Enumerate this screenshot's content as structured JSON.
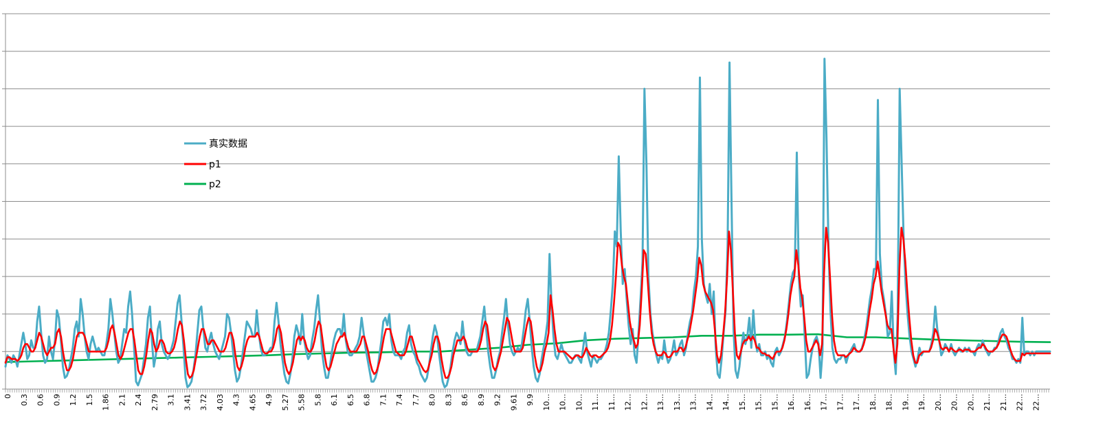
{
  "chart_data": {
    "type": "line",
    "title": "",
    "xlabel": "",
    "ylabel": "",
    "ylim": [
      0,
      10
    ],
    "grid": true,
    "legend_placement": "upper-left, inside plot",
    "x_tick_labels": [
      "0",
      "0.3",
      "0.6",
      "0.9",
      "1.2",
      "1.5",
      "1.86",
      "2.1",
      "2.4",
      "2.79",
      "3.1",
      "3.41",
      "3.72",
      "4.03",
      "4.3",
      "4.65",
      "4.9",
      "5.27",
      "5.58",
      "5.8",
      "6.1",
      "6.5",
      "6.8",
      "7.1",
      "7.4",
      "7.7",
      "8.0",
      "8.3",
      "8.6",
      "8.9",
      "9.2",
      "9.61",
      "9.9",
      "10...",
      "10...",
      "10...",
      "11...",
      "11...",
      "12...",
      "12...",
      "13...",
      "13...",
      "13...",
      "14...",
      "14...",
      "15...",
      "15...",
      "15...",
      "16...",
      "16...",
      "17...",
      "17...",
      "17...",
      "18...",
      "18...",
      "19...",
      "19...",
      "20...",
      "20...",
      "20...",
      "21...",
      "21...",
      "22...",
      "22..."
    ],
    "series": [
      {
        "name": "真实数据",
        "color": "#4BACC6",
        "values": [
          0.6,
          0.9,
          0.8,
          0.7,
          0.9,
          0.8,
          0.6,
          0.9,
          1.2,
          1.5,
          1.2,
          0.8,
          0.9,
          1.3,
          1.1,
          1.1,
          1.8,
          2.2,
          1.5,
          0.9,
          0.7,
          0.8,
          1.4,
          1.0,
          0.8,
          1.3,
          2.1,
          1.9,
          1.3,
          0.6,
          0.3,
          0.35,
          0.5,
          0.8,
          1.1,
          1.6,
          1.8,
          1.4,
          2.4,
          2.0,
          1.4,
          1.0,
          0.8,
          1.2,
          1.4,
          1.2,
          1.0,
          1.1,
          1.0,
          0.9,
          0.9,
          1.2,
          1.6,
          2.4,
          2.0,
          1.5,
          1.0,
          0.7,
          0.8,
          1.2,
          1.6,
          1.5,
          2.2,
          2.6,
          2.0,
          1.1,
          0.2,
          0.1,
          0.25,
          0.4,
          0.8,
          1.2,
          1.9,
          2.2,
          1.3,
          0.6,
          0.9,
          1.6,
          1.8,
          1.2,
          1.0,
          0.9,
          0.8,
          0.9,
          1.1,
          1.3,
          1.8,
          2.3,
          2.5,
          1.8,
          1.1,
          0.3,
          0.05,
          0.1,
          0.2,
          0.5,
          0.9,
          1.5,
          2.1,
          2.2,
          1.6,
          1.1,
          1.0,
          1.3,
          1.5,
          1.2,
          1.0,
          0.9,
          0.8,
          1.0,
          1.2,
          1.4,
          2.0,
          1.9,
          1.5,
          1.0,
          0.5,
          0.2,
          0.3,
          0.6,
          1.0,
          1.4,
          1.8,
          1.7,
          1.6,
          1.4,
          1.4,
          2.1,
          1.5,
          1.1,
          0.9,
          0.9,
          0.95,
          1.0,
          1.1,
          1.1,
          1.8,
          2.3,
          1.8,
          1.2,
          0.8,
          0.4,
          0.2,
          0.15,
          0.4,
          0.8,
          1.4,
          1.7,
          1.5,
          1.2,
          2.0,
          1.3,
          1.0,
          0.8,
          0.9,
          1.3,
          1.6,
          2.1,
          2.5,
          1.8,
          1.0,
          0.6,
          0.3,
          0.3,
          0.6,
          1.0,
          1.3,
          1.5,
          1.6,
          1.6,
          1.4,
          2.0,
          1.3,
          1.0,
          0.9,
          0.9,
          1.0,
          1.1,
          1.2,
          1.4,
          1.9,
          1.5,
          1.1,
          0.8,
          0.5,
          0.2,
          0.2,
          0.3,
          0.5,
          0.9,
          1.3,
          1.8,
          1.9,
          1.7,
          2.0,
          1.3,
          1.0,
          0.9,
          0.9,
          0.9,
          0.8,
          1.0,
          1.1,
          1.5,
          1.7,
          1.2,
          1.0,
          0.9,
          0.7,
          0.6,
          0.4,
          0.3,
          0.2,
          0.3,
          0.6,
          1.0,
          1.4,
          1.7,
          1.5,
          1.0,
          0.6,
          0.2,
          0.05,
          0.1,
          0.3,
          0.6,
          1.0,
          1.3,
          1.5,
          1.4,
          1.2,
          1.8,
          1.3,
          1.0,
          0.9,
          0.9,
          1.0,
          1.0,
          1.0,
          1.2,
          1.4,
          1.8,
          2.2,
          1.6,
          1.0,
          0.6,
          0.3,
          0.3,
          0.5,
          0.8,
          1.0,
          1.5,
          1.9,
          2.4,
          1.7,
          1.2,
          1.0,
          0.9,
          1.0,
          1.1,
          1.0,
          1.2,
          1.6,
          2.1,
          2.4,
          1.8,
          1.1,
          0.6,
          0.3,
          0.2,
          0.4,
          0.8,
          1.1,
          1.4,
          1.8,
          3.6,
          2.3,
          1.4,
          0.9,
          0.8,
          1.0,
          1.2,
          1.0,
          0.9,
          0.8,
          0.7,
          0.7,
          0.8,
          0.9,
          0.9,
          0.8,
          0.7,
          1.1,
          1.5,
          1.0,
          0.8,
          0.6,
          0.9,
          0.8,
          0.7,
          0.8,
          0.8,
          0.9,
          1.0,
          1.2,
          1.5,
          2.1,
          2.8,
          4.2,
          3.8,
          6.2,
          4.2,
          2.8,
          3.2,
          2.4,
          1.7,
          1.2,
          1.6,
          0.9,
          0.7,
          1.5,
          2.4,
          3.4,
          8.0,
          6.0,
          3.0,
          2.0,
          1.5,
          1.2,
          0.9,
          0.7,
          0.9,
          0.8,
          1.3,
          0.9,
          0.7,
          0.8,
          1.0,
          1.3,
          0.9,
          1.0,
          1.2,
          1.3,
          0.9,
          1.1,
          1.5,
          1.8,
          2.0,
          2.6,
          3.0,
          3.8,
          8.3,
          4.0,
          2.8,
          2.5,
          2.3,
          2.8,
          2.0,
          2.6,
          1.1,
          0.4,
          0.3,
          0.8,
          1.5,
          2.1,
          3.8,
          8.7,
          5.0,
          1.6,
          0.5,
          0.3,
          0.6,
          1.1,
          1.5,
          1.2,
          1.4,
          1.9,
          1.1,
          2.1,
          1.3,
          1.0,
          1.2,
          0.9,
          0.9,
          1.0,
          0.8,
          0.9,
          0.7,
          0.6,
          1.0,
          1.1,
          0.9,
          1.0,
          1.2,
          1.4,
          1.8,
          2.3,
          2.8,
          3.1,
          3.2,
          6.3,
          3.0,
          2.2,
          2.5,
          1.4,
          0.3,
          0.4,
          0.8,
          1.1,
          1.3,
          1.4,
          1.2,
          0.3,
          1.0,
          8.8,
          6.7,
          3.8,
          2.1,
          1.1,
          0.8,
          0.7,
          0.8,
          0.8,
          0.9,
          0.9,
          0.7,
          0.9,
          1.0,
          1.1,
          1.2,
          1.0,
          1.0,
          1.0,
          1.1,
          1.3,
          1.6,
          2.0,
          2.4,
          2.7,
          3.2,
          3.2,
          7.7,
          3.6,
          2.7,
          2.4,
          2.0,
          1.4,
          1.5,
          2.6,
          1.0,
          0.4,
          2.0,
          8.0,
          6.0,
          4.0,
          2.8,
          2.0,
          1.4,
          1.0,
          0.8,
          0.6,
          0.8,
          1.1,
          0.9,
          1.0,
          1.0,
          1.0,
          1.0,
          1.2,
          1.5,
          2.2,
          1.6,
          1.3,
          0.9,
          1.0,
          1.2,
          1.1,
          1.0,
          1.2,
          1.0,
          0.9,
          1.0,
          1.1,
          1.0,
          1.0,
          1.1,
          1.0,
          1.1,
          1.0,
          1.0,
          0.9,
          1.1,
          1.2,
          1.1,
          1.3,
          1.1,
          1.0,
          0.9,
          1.0,
          1.0,
          1.1,
          1.1,
          1.3,
          1.5,
          1.6,
          1.4,
          1.3,
          1.1,
          1.0,
          0.8,
          0.8,
          0.7,
          0.8,
          0.7,
          1.9,
          0.9,
          1.0,
          1.0,
          0.9,
          1.0,
          0.9,
          1.0,
          1.0,
          1.0,
          1.0,
          1.0,
          1.0,
          1.0,
          1.0
        ]
      },
      {
        "name": "p1",
        "color": "#FF0000",
        "values": [
          0.7,
          0.85,
          0.85,
          0.8,
          0.8,
          0.8,
          0.75,
          0.8,
          0.9,
          1.1,
          1.2,
          1.2,
          1.1,
          1.0,
          1.0,
          1.1,
          1.3,
          1.5,
          1.4,
          1.2,
          1.0,
          0.9,
          1.0,
          1.1,
          1.1,
          1.2,
          1.5,
          1.6,
          1.4,
          1.0,
          0.7,
          0.5,
          0.5,
          0.6,
          0.8,
          1.1,
          1.4,
          1.5,
          1.5,
          1.5,
          1.4,
          1.2,
          1.0,
          1.0,
          1.0,
          1.0,
          1.0,
          1.0,
          1.0,
          1.0,
          1.0,
          1.1,
          1.3,
          1.6,
          1.7,
          1.5,
          1.2,
          0.9,
          0.8,
          0.9,
          1.1,
          1.3,
          1.5,
          1.6,
          1.6,
          1.3,
          0.9,
          0.5,
          0.4,
          0.4,
          0.6,
          0.9,
          1.3,
          1.6,
          1.5,
          1.2,
          1.0,
          1.1,
          1.3,
          1.3,
          1.2,
          1.0,
          0.95,
          0.95,
          1.0,
          1.1,
          1.3,
          1.6,
          1.8,
          1.7,
          1.3,
          0.8,
          0.4,
          0.3,
          0.35,
          0.5,
          0.8,
          1.1,
          1.4,
          1.6,
          1.6,
          1.4,
          1.2,
          1.2,
          1.3,
          1.3,
          1.2,
          1.1,
          1.0,
          1.0,
          1.0,
          1.1,
          1.3,
          1.5,
          1.5,
          1.3,
          0.9,
          0.6,
          0.5,
          0.6,
          0.8,
          1.1,
          1.3,
          1.4,
          1.4,
          1.4,
          1.4,
          1.5,
          1.4,
          1.2,
          1.0,
          0.95,
          0.95,
          1.0,
          1.0,
          1.1,
          1.3,
          1.6,
          1.7,
          1.5,
          1.1,
          0.7,
          0.5,
          0.4,
          0.5,
          0.7,
          1.0,
          1.3,
          1.4,
          1.3,
          1.4,
          1.3,
          1.1,
          1.0,
          1.0,
          1.1,
          1.3,
          1.6,
          1.8,
          1.7,
          1.3,
          0.9,
          0.6,
          0.5,
          0.6,
          0.8,
          1.0,
          1.2,
          1.3,
          1.4,
          1.4,
          1.5,
          1.3,
          1.1,
          1.0,
          1.0,
          1.0,
          1.0,
          1.1,
          1.2,
          1.4,
          1.4,
          1.2,
          1.0,
          0.7,
          0.5,
          0.4,
          0.45,
          0.6,
          0.8,
          1.1,
          1.4,
          1.6,
          1.6,
          1.6,
          1.4,
          1.2,
          1.0,
          0.95,
          0.9,
          0.9,
          0.9,
          1.0,
          1.2,
          1.4,
          1.4,
          1.2,
          1.0,
          0.8,
          0.7,
          0.6,
          0.5,
          0.45,
          0.5,
          0.7,
          0.9,
          1.2,
          1.4,
          1.4,
          1.2,
          0.8,
          0.5,
          0.3,
          0.3,
          0.4,
          0.6,
          0.9,
          1.1,
          1.3,
          1.3,
          1.3,
          1.4,
          1.3,
          1.1,
          1.0,
          1.0,
          1.0,
          1.0,
          1.0,
          1.1,
          1.3,
          1.6,
          1.8,
          1.7,
          1.3,
          0.9,
          0.6,
          0.5,
          0.6,
          0.8,
          1.0,
          1.3,
          1.6,
          1.9,
          1.8,
          1.5,
          1.2,
          1.0,
          1.0,
          1.0,
          1.0,
          1.1,
          1.4,
          1.7,
          1.9,
          1.8,
          1.4,
          0.9,
          0.6,
          0.45,
          0.5,
          0.7,
          1.0,
          1.2,
          1.5,
          2.5,
          2.1,
          1.6,
          1.2,
          1.0,
          1.0,
          1.0,
          1.0,
          0.95,
          0.9,
          0.85,
          0.8,
          0.85,
          0.9,
          0.9,
          0.85,
          0.85,
          0.95,
          1.1,
          1.0,
          0.9,
          0.85,
          0.9,
          0.9,
          0.85,
          0.85,
          0.9,
          0.95,
          1.0,
          1.1,
          1.3,
          1.7,
          2.3,
          3.0,
          3.9,
          3.8,
          3.3,
          3.0,
          2.8,
          2.3,
          1.8,
          1.5,
          1.3,
          1.1,
          1.2,
          1.7,
          2.6,
          3.7,
          3.6,
          2.9,
          2.1,
          1.5,
          1.2,
          1.0,
          0.9,
          0.9,
          0.9,
          1.0,
          0.95,
          0.85,
          0.85,
          0.9,
          1.0,
          1.0,
          1.0,
          1.1,
          1.1,
          1.0,
          1.1,
          1.3,
          1.5,
          1.8,
          2.1,
          2.5,
          2.9,
          3.5,
          3.3,
          2.8,
          2.6,
          2.5,
          2.4,
          2.3,
          2.1,
          1.5,
          0.9,
          0.7,
          0.9,
          1.4,
          2.0,
          2.9,
          4.2,
          3.7,
          2.6,
          1.5,
          0.9,
          0.8,
          1.0,
          1.2,
          1.3,
          1.3,
          1.4,
          1.3,
          1.4,
          1.3,
          1.1,
          1.1,
          1.0,
          0.95,
          0.95,
          0.9,
          0.9,
          0.85,
          0.8,
          0.9,
          1.0,
          1.0,
          1.0,
          1.1,
          1.3,
          1.6,
          2.0,
          2.5,
          2.8,
          3.0,
          3.7,
          3.3,
          2.7,
          2.4,
          1.9,
          1.3,
          1.0,
          1.0,
          1.1,
          1.2,
          1.3,
          1.2,
          0.9,
          1.2,
          3.1,
          4.3,
          3.9,
          3.0,
          2.0,
          1.3,
          1.0,
          0.9,
          0.9,
          0.9,
          0.9,
          0.85,
          0.9,
          0.95,
          1.0,
          1.1,
          1.05,
          1.0,
          1.0,
          1.05,
          1.2,
          1.4,
          1.7,
          2.1,
          2.4,
          2.8,
          3.0,
          3.4,
          3.0,
          2.6,
          2.3,
          2.0,
          1.7,
          1.6,
          1.6,
          1.1,
          0.7,
          1.2,
          3.2,
          4.3,
          4.0,
          3.4,
          2.6,
          1.9,
          1.3,
          0.9,
          0.7,
          0.7,
          0.9,
          0.95,
          1.0,
          1.0,
          1.0,
          1.0,
          1.1,
          1.3,
          1.6,
          1.5,
          1.3,
          1.1,
          1.05,
          1.1,
          1.1,
          1.0,
          1.1,
          1.05,
          1.0,
          1.0,
          1.05,
          1.05,
          1.0,
          1.05,
          1.05,
          1.05,
          1.0,
          1.0,
          1.0,
          1.05,
          1.1,
          1.1,
          1.2,
          1.15,
          1.05,
          1.0,
          1.0,
          1.0,
          1.05,
          1.1,
          1.2,
          1.35,
          1.45,
          1.45,
          1.4,
          1.25,
          1.05,
          0.9,
          0.8,
          0.75,
          0.75,
          0.75,
          0.95,
          0.9,
          0.95,
          0.95,
          0.95,
          0.95,
          0.95,
          0.95,
          0.95,
          0.95,
          0.95,
          0.95,
          0.95,
          0.95,
          0.95
        ]
      },
      {
        "name": "p2",
        "color": "#00B050",
        "values": [
          0.72,
          0.74,
          0.76,
          0.78,
          0.8,
          0.82,
          0.84,
          0.86,
          0.88,
          0.9,
          0.93,
          0.95,
          0.97,
          0.98,
          1.0,
          1.0,
          1.05,
          1.1,
          1.18,
          1.22,
          1.3,
          1.34,
          1.36,
          1.38,
          1.42,
          1.42,
          1.45,
          1.45,
          1.46,
          1.38,
          1.38,
          1.35,
          1.32,
          1.3,
          1.28,
          1.26,
          1.25
        ]
      }
    ]
  }
}
